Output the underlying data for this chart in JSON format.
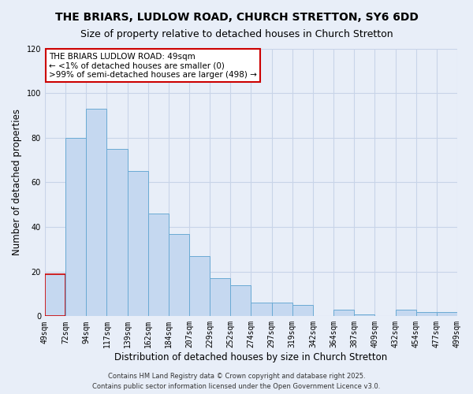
{
  "title": "THE BRIARS, LUDLOW ROAD, CHURCH STRETTON, SY6 6DD",
  "subtitle": "Size of property relative to detached houses in Church Stretton",
  "xlabel": "Distribution of detached houses by size in Church Stretton",
  "ylabel": "Number of detached properties",
  "bar_values": [
    19,
    80,
    93,
    75,
    65,
    46,
    37,
    27,
    17,
    14,
    6,
    6,
    5,
    0,
    3,
    1,
    0,
    3,
    2,
    2
  ],
  "x_tick_labels": [
    "49sqm",
    "72sqm",
    "94sqm",
    "117sqm",
    "139sqm",
    "162sqm",
    "184sqm",
    "207sqm",
    "229sqm",
    "252sqm",
    "274sqm",
    "297sqm",
    "319sqm",
    "342sqm",
    "364sqm",
    "387sqm",
    "409sqm",
    "432sqm",
    "454sqm",
    "477sqm",
    "499sqm"
  ],
  "bar_color": "#c5d8f0",
  "bar_edge_color": "#6aaad4",
  "highlight_bar_index": 0,
  "highlight_bar_edge_color": "#cc0000",
  "ylim": [
    0,
    120
  ],
  "yticks": [
    0,
    20,
    40,
    60,
    80,
    100,
    120
  ],
  "annotation_title": "THE BRIARS LUDLOW ROAD: 49sqm",
  "annotation_line1": "← <1% of detached houses are smaller (0)",
  "annotation_line2": ">99% of semi-detached houses are larger (498) →",
  "annotation_box_facecolor": "#ffffff",
  "annotation_box_edgecolor": "#cc0000",
  "footer_line1": "Contains HM Land Registry data © Crown copyright and database right 2025.",
  "footer_line2": "Contains public sector information licensed under the Open Government Licence v3.0.",
  "background_color": "#e8eef8",
  "plot_bg_color": "#e8eef8",
  "grid_color": "#c8d4e8",
  "title_fontsize": 10,
  "subtitle_fontsize": 9,
  "axis_label_fontsize": 8.5,
  "tick_fontsize": 7,
  "annotation_fontsize": 7.5,
  "footer_fontsize": 6
}
